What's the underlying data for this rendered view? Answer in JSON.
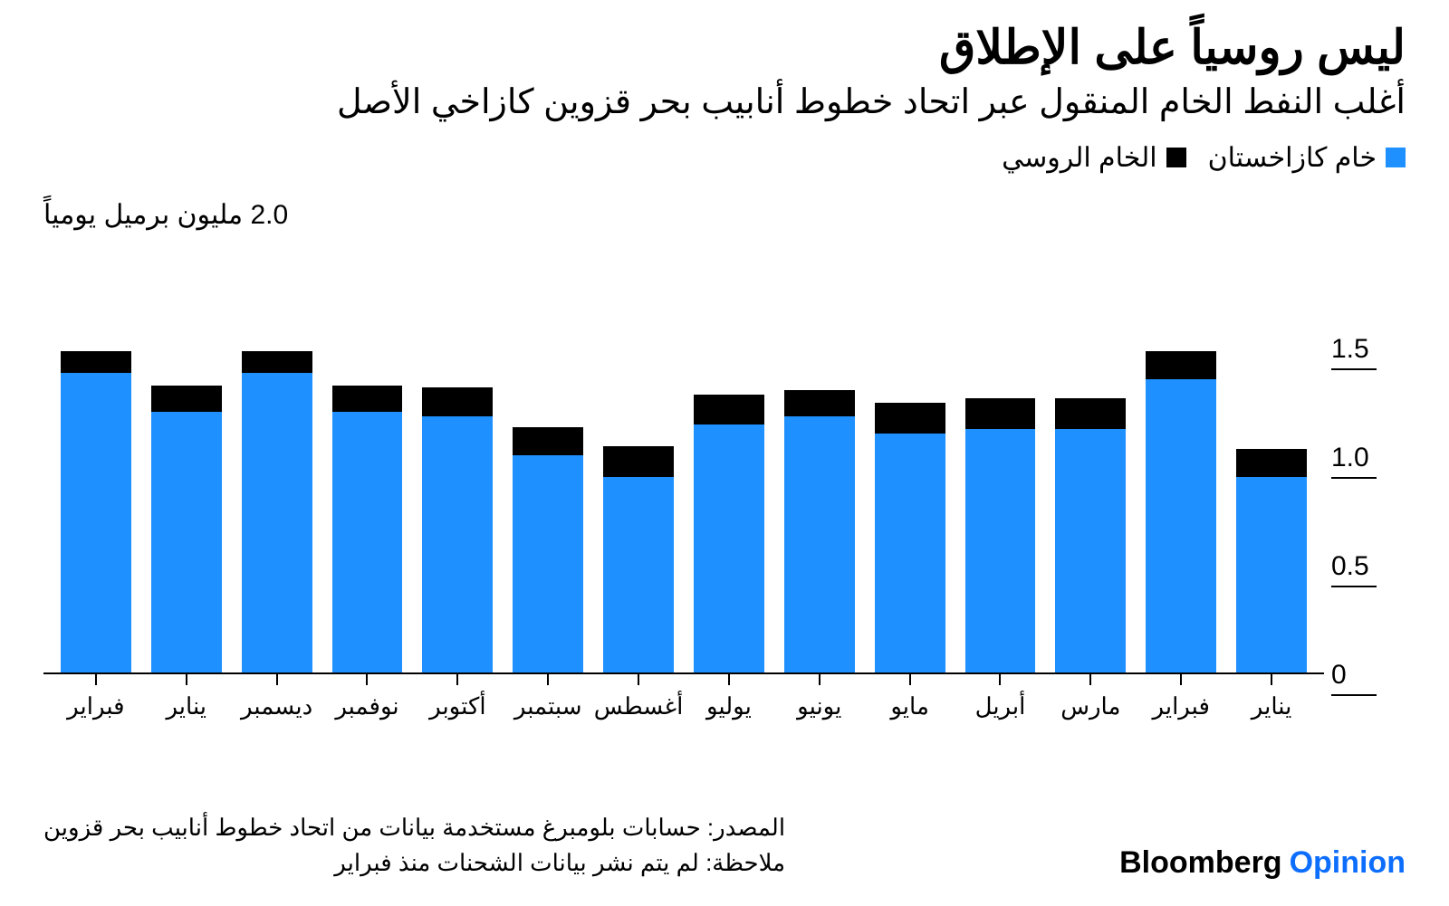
{
  "title": "ليس روسياً على الإطلاق",
  "subtitle": "أغلب النفط الخام المنقول عبر اتحاد خطوط أنابيب بحر قزوين كازاخي الأصل",
  "unit_label": "2.0 مليون برميل يومياً",
  "legend": {
    "series1": {
      "label": "خام كازاخستان",
      "color": "#1e90ff"
    },
    "series2": {
      "label": "الخام الروسي",
      "color": "#000000"
    }
  },
  "chart": {
    "type": "stacked-bar",
    "ymin": 0,
    "ymax": 2.0,
    "ytick_labels": [
      "0",
      "0.5",
      "1.0",
      "1.5"
    ],
    "ytick_values": [
      0,
      0.5,
      1.0,
      1.5
    ],
    "background_color": "#ffffff",
    "bar_width_ratio": 0.78,
    "categories": [
      "يناير",
      "فبراير",
      "مارس",
      "أبريل",
      "مايو",
      "يونيو",
      "يوليو",
      "أغسطس",
      "سبتمبر",
      "أكتوبر",
      "نوفمبر",
      "ديسمبر",
      "يناير",
      "فبراير"
    ],
    "series": [
      {
        "name": "kazakh",
        "color": "#1e90ff",
        "values": [
          0.9,
          1.35,
          1.12,
          1.12,
          1.1,
          1.18,
          1.14,
          0.9,
          1.0,
          1.18,
          1.2,
          1.38,
          1.2,
          1.38
        ]
      },
      {
        "name": "russian",
        "color": "#000000",
        "values": [
          0.13,
          0.13,
          0.14,
          0.14,
          0.14,
          0.12,
          0.14,
          0.14,
          0.13,
          0.13,
          0.12,
          0.1,
          0.12,
          0.1
        ]
      }
    ]
  },
  "source": "المصدر: حسابات بلومبرغ مستخدمة بيانات من اتحاد خطوط أنابيب بحر قزوين",
  "note": "ملاحظة: لم يتم نشر بيانات الشحنات منذ فبراير",
  "brand": {
    "part1": "Bloomberg",
    "part2": "Opinion",
    "color1": "#000000",
    "color2": "#0d6efd"
  }
}
